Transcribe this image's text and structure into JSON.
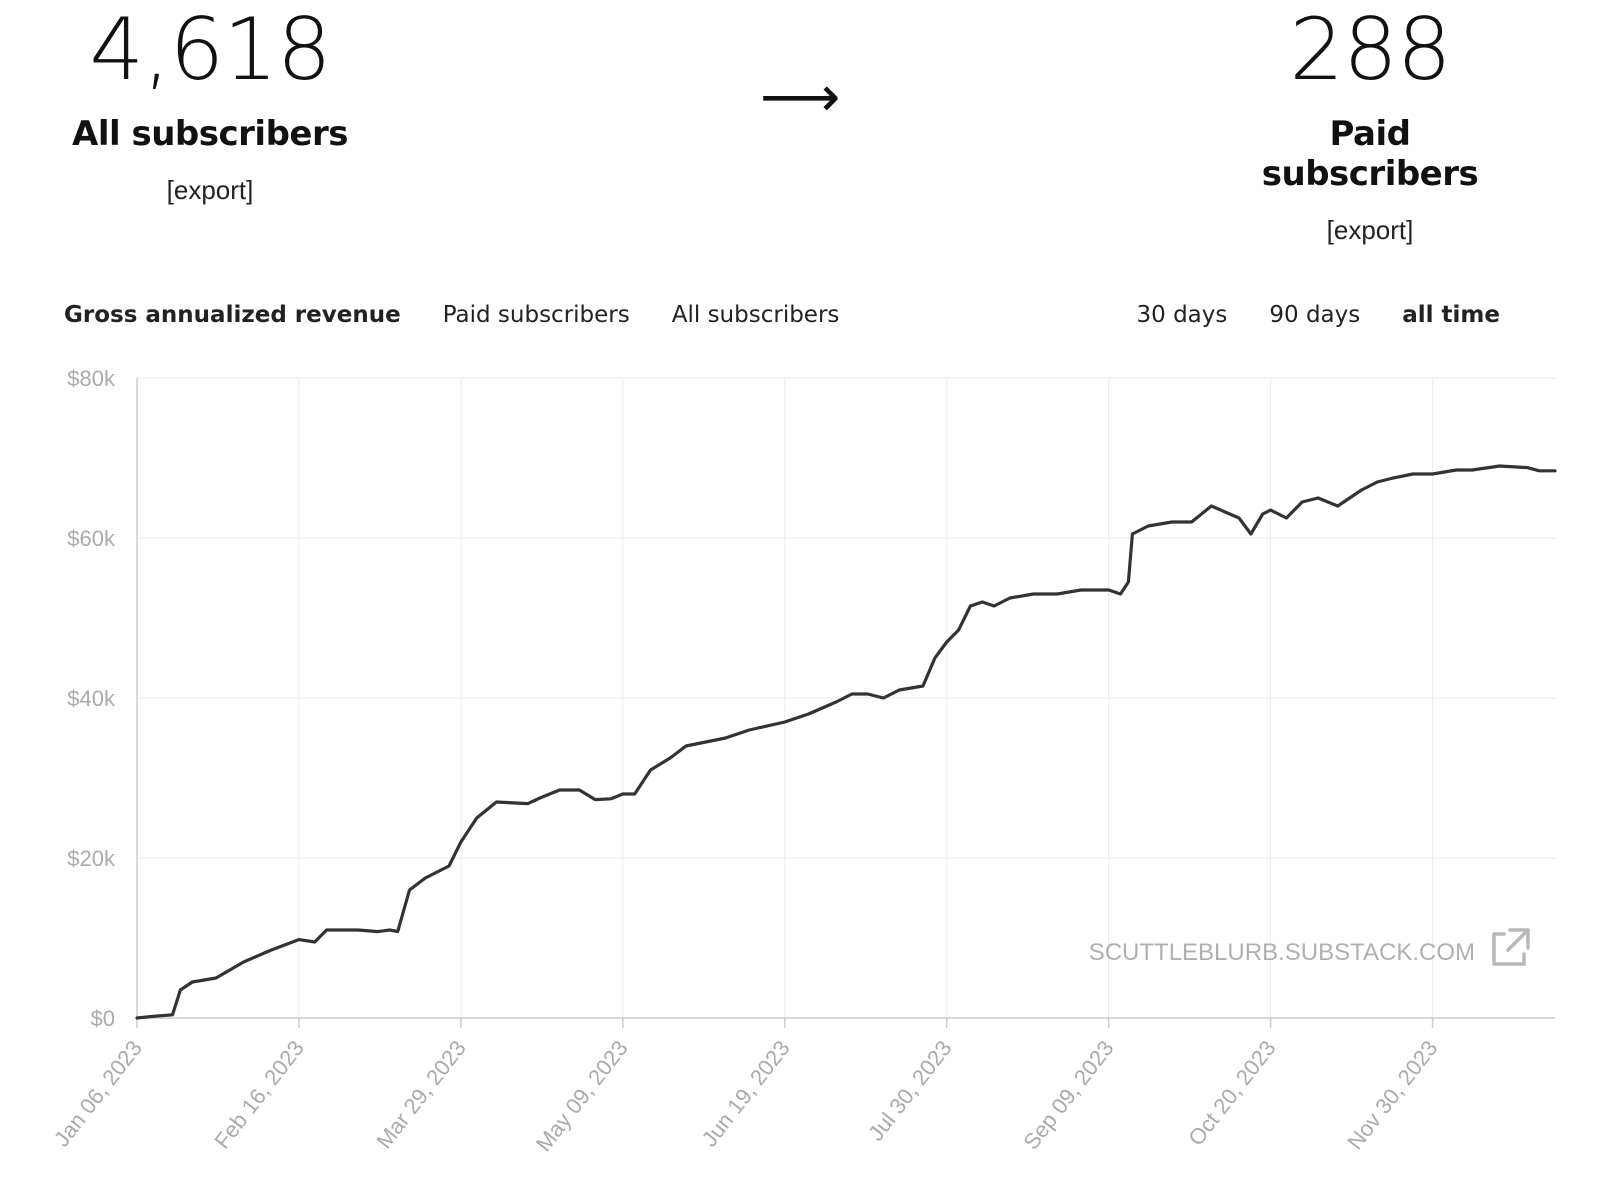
{
  "stats": {
    "all": {
      "number": "4,618",
      "label": "All subscribers",
      "export": "[export]"
    },
    "paid": {
      "number": "288",
      "label": "Paid subscribers",
      "export": "[export]"
    },
    "arrow": "⟶"
  },
  "tabs": [
    {
      "label": "Gross annualized revenue",
      "active": true
    },
    {
      "label": "Paid subscribers",
      "active": false
    },
    {
      "label": "All subscribers",
      "active": false
    }
  ],
  "ranges": [
    {
      "label": "30 days",
      "active": false
    },
    {
      "label": "90 days",
      "active": false
    },
    {
      "label": "all time",
      "active": true
    }
  ],
  "watermark": "SCUTTLEBLURB.SUBSTACK.COM",
  "colors": {
    "line": "#333333",
    "grid": "#eeeeee",
    "axis": "#cccccc",
    "tick_text": "#aaaaaa"
  },
  "chart_data": {
    "type": "line",
    "title": "",
    "xlabel": "",
    "ylabel": "",
    "ylim": [
      0,
      80000
    ],
    "yticks": [
      0,
      20000,
      40000,
      60000,
      80000
    ],
    "ytick_labels": [
      "$0",
      "$20k",
      "$40k",
      "$60k",
      "$80k"
    ],
    "xticks": [
      "2023-01-06",
      "2023-02-16",
      "2023-03-29",
      "2023-05-09",
      "2023-06-19",
      "2023-07-30",
      "2023-09-09",
      "2023-10-20",
      "2023-11-30"
    ],
    "xtick_labels": [
      "Jan 06, 2023",
      "Feb 16, 2023",
      "Mar 29, 2023",
      "May 09, 2023",
      "Jun 19, 2023",
      "Jul 30, 2023",
      "Sep 09, 2023",
      "Oct 20, 2023",
      "Nov 30, 2023"
    ],
    "xlim": [
      "2023-01-06",
      "2023-12-31"
    ],
    "grid": true,
    "series": [
      {
        "x": [
          "2023-01-06",
          "2023-01-10",
          "2023-01-15",
          "2023-01-17",
          "2023-01-20",
          "2023-01-26",
          "2023-02-02",
          "2023-02-09",
          "2023-02-16",
          "2023-02-20",
          "2023-02-23",
          "2023-03-03",
          "2023-03-08",
          "2023-03-11",
          "2023-03-13",
          "2023-03-16",
          "2023-03-20",
          "2023-03-26",
          "2023-03-29",
          "2023-04-02",
          "2023-04-07",
          "2023-04-15",
          "2023-04-18",
          "2023-04-23",
          "2023-04-28",
          "2023-05-02",
          "2023-05-06",
          "2023-05-09",
          "2023-05-12",
          "2023-05-16",
          "2023-05-21",
          "2023-05-25",
          "2023-06-04",
          "2023-06-10",
          "2023-06-19",
          "2023-06-25",
          "2023-07-02",
          "2023-07-06",
          "2023-07-10",
          "2023-07-14",
          "2023-07-18",
          "2023-07-24",
          "2023-07-27",
          "2023-07-30",
          "2023-08-02",
          "2023-08-05",
          "2023-08-08",
          "2023-08-11",
          "2023-08-15",
          "2023-08-21",
          "2023-08-27",
          "2023-09-02",
          "2023-09-09",
          "2023-09-12",
          "2023-09-14",
          "2023-09-15",
          "2023-09-19",
          "2023-09-25",
          "2023-09-30",
          "2023-10-05",
          "2023-10-12",
          "2023-10-15",
          "2023-10-18",
          "2023-10-20",
          "2023-10-24",
          "2023-10-28",
          "2023-11-01",
          "2023-11-06",
          "2023-11-12",
          "2023-11-16",
          "2023-11-20",
          "2023-11-25",
          "2023-11-30",
          "2023-12-06",
          "2023-12-10",
          "2023-12-17",
          "2023-12-24",
          "2023-12-27",
          "2023-12-31"
        ],
        "y": [
          0,
          200,
          400,
          3500,
          4500,
          5000,
          7000,
          8500,
          9800,
          9500,
          11000,
          11000,
          10800,
          11000,
          10800,
          16000,
          17500,
          19000,
          22000,
          25000,
          27000,
          26800,
          27500,
          28500,
          28500,
          27300,
          27400,
          28000,
          28000,
          31000,
          32500,
          34000,
          35000,
          36000,
          37000,
          38000,
          39500,
          40500,
          40500,
          40000,
          41000,
          41500,
          45000,
          47000,
          48500,
          51500,
          52000,
          51500,
          52500,
          53000,
          53000,
          53500,
          53500,
          53000,
          54500,
          60500,
          61500,
          62000,
          62000,
          64000,
          62500,
          60500,
          63000,
          63500,
          62500,
          64500,
          65000,
          64000,
          66000,
          67000,
          67500,
          68000,
          68000,
          68500,
          68500,
          69000,
          68800,
          68400,
          68400
        ]
      }
    ]
  }
}
